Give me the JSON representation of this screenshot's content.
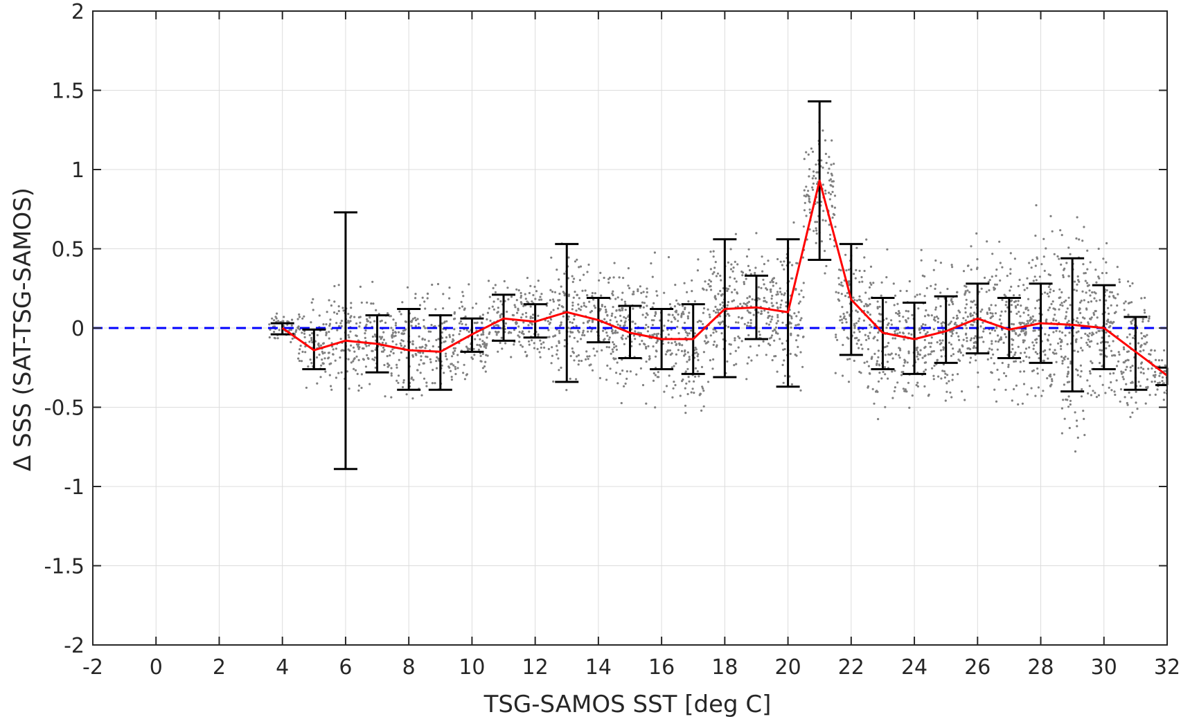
{
  "chart_data": {
    "type": "scatter",
    "xlabel": "TSG-SAMOS SST [deg C]",
    "ylabel": "Δ SSS (SAT-TSG-SAMOS)",
    "xlim": [
      -2,
      32
    ],
    "ylim": [
      -2,
      2
    ],
    "xticks": [
      -2,
      0,
      2,
      4,
      6,
      8,
      10,
      12,
      14,
      16,
      18,
      20,
      22,
      24,
      26,
      28,
      30,
      32
    ],
    "yticks": [
      -2,
      -1.5,
      -1,
      -0.5,
      0,
      0.5,
      1,
      1.5,
      2
    ],
    "xtick_labels": [
      "-2",
      "0",
      "2",
      "4",
      "6",
      "8",
      "10",
      "12",
      "14",
      "16",
      "18",
      "20",
      "22",
      "24",
      "26",
      "28",
      "30",
      "32"
    ],
    "ytick_labels": [
      "-2",
      "-1.5",
      "-1",
      "-0.5",
      "0",
      "0.5",
      "1",
      "1.5",
      "2"
    ],
    "grid": true,
    "colors": {
      "scatter": "#808080",
      "mean_line": "#ff0000",
      "error_bars": "#000000",
      "zero_line": "#0000ff",
      "grid": "#dcdcdc"
    },
    "zero_line": {
      "y": 0,
      "style": "dashed"
    },
    "scatter_clouds": [
      {
        "x": 4.0,
        "center": 0.0,
        "spread": 0.04
      },
      {
        "x": 5.0,
        "center": -0.1,
        "spread": 0.12
      },
      {
        "x": 6.0,
        "center": -0.05,
        "spread": 0.15
      },
      {
        "x": 7.0,
        "center": -0.08,
        "spread": 0.14
      },
      {
        "x": 8.0,
        "center": -0.1,
        "spread": 0.16
      },
      {
        "x": 9.0,
        "center": -0.12,
        "spread": 0.16
      },
      {
        "x": 10.0,
        "center": -0.05,
        "spread": 0.13
      },
      {
        "x": 11.0,
        "center": 0.05,
        "spread": 0.1
      },
      {
        "x": 12.0,
        "center": 0.05,
        "spread": 0.12
      },
      {
        "x": 13.0,
        "center": 0.08,
        "spread": 0.2
      },
      {
        "x": 14.0,
        "center": 0.05,
        "spread": 0.18
      },
      {
        "x": 15.0,
        "center": 0.0,
        "spread": 0.18
      },
      {
        "x": 16.0,
        "center": -0.05,
        "spread": 0.18
      },
      {
        "x": 17.0,
        "center": -0.05,
        "spread": 0.2
      },
      {
        "x": 18.0,
        "center": 0.1,
        "spread": 0.2
      },
      {
        "x": 19.0,
        "center": 0.12,
        "spread": 0.17
      },
      {
        "x": 20.0,
        "center": 0.1,
        "spread": 0.2
      },
      {
        "x": 21.0,
        "center": 0.85,
        "spread": 0.2
      },
      {
        "x": 22.0,
        "center": 0.1,
        "spread": 0.2
      },
      {
        "x": 23.0,
        "center": -0.05,
        "spread": 0.2
      },
      {
        "x": 24.0,
        "center": -0.08,
        "spread": 0.2
      },
      {
        "x": 25.0,
        "center": -0.02,
        "spread": 0.2
      },
      {
        "x": 26.0,
        "center": 0.05,
        "spread": 0.22
      },
      {
        "x": 27.0,
        "center": 0.0,
        "spread": 0.22
      },
      {
        "x": 28.0,
        "center": 0.03,
        "spread": 0.25
      },
      {
        "x": 29.0,
        "center": 0.02,
        "spread": 0.3
      },
      {
        "x": 30.0,
        "center": 0.0,
        "spread": 0.25
      },
      {
        "x": 31.0,
        "center": -0.15,
        "spread": 0.18
      },
      {
        "x": 32.0,
        "center": -0.3,
        "spread": 0.08
      }
    ],
    "series": [
      {
        "type": "line",
        "points": [
          {
            "x": 4,
            "y": 0.0
          },
          {
            "x": 5,
            "y": -0.14
          },
          {
            "x": 6,
            "y": -0.08
          },
          {
            "x": 7,
            "y": -0.1
          },
          {
            "x": 8,
            "y": -0.14
          },
          {
            "x": 9,
            "y": -0.15
          },
          {
            "x": 10,
            "y": -0.04
          },
          {
            "x": 11,
            "y": 0.06
          },
          {
            "x": 12,
            "y": 0.04
          },
          {
            "x": 13,
            "y": 0.1
          },
          {
            "x": 14,
            "y": 0.05
          },
          {
            "x": 15,
            "y": -0.03
          },
          {
            "x": 16,
            "y": -0.07
          },
          {
            "x": 17,
            "y": -0.07
          },
          {
            "x": 18,
            "y": 0.12
          },
          {
            "x": 19,
            "y": 0.13
          },
          {
            "x": 20,
            "y": 0.1
          },
          {
            "x": 21,
            "y": 0.93
          },
          {
            "x": 22,
            "y": 0.18
          },
          {
            "x": 23,
            "y": -0.03
          },
          {
            "x": 24,
            "y": -0.07
          },
          {
            "x": 25,
            "y": -0.02
          },
          {
            "x": 26,
            "y": 0.06
          },
          {
            "x": 27,
            "y": -0.01
          },
          {
            "x": 28,
            "y": 0.03
          },
          {
            "x": 29,
            "y": 0.02
          },
          {
            "x": 30,
            "y": 0.0
          },
          {
            "x": 31,
            "y": -0.15
          },
          {
            "x": 32,
            "y": -0.3
          }
        ]
      },
      {
        "type": "errorbar",
        "points": [
          {
            "x": 4,
            "low": -0.04,
            "high": 0.03
          },
          {
            "x": 5,
            "low": -0.26,
            "high": -0.01
          },
          {
            "x": 6,
            "low": -0.89,
            "high": 0.73
          },
          {
            "x": 7,
            "low": -0.28,
            "high": 0.08
          },
          {
            "x": 8,
            "low": -0.39,
            "high": 0.12
          },
          {
            "x": 9,
            "low": -0.39,
            "high": 0.08
          },
          {
            "x": 10,
            "low": -0.15,
            "high": 0.06
          },
          {
            "x": 11,
            "low": -0.08,
            "high": 0.21
          },
          {
            "x": 12,
            "low": -0.06,
            "high": 0.15
          },
          {
            "x": 13,
            "low": -0.34,
            "high": 0.53
          },
          {
            "x": 14,
            "low": -0.09,
            "high": 0.19
          },
          {
            "x": 15,
            "low": -0.19,
            "high": 0.14
          },
          {
            "x": 16,
            "low": -0.26,
            "high": 0.12
          },
          {
            "x": 17,
            "low": -0.29,
            "high": 0.15
          },
          {
            "x": 18,
            "low": -0.31,
            "high": 0.56
          },
          {
            "x": 19,
            "low": -0.07,
            "high": 0.33
          },
          {
            "x": 20,
            "low": -0.37,
            "high": 0.56
          },
          {
            "x": 21,
            "low": 0.43,
            "high": 1.43
          },
          {
            "x": 22,
            "low": -0.17,
            "high": 0.53
          },
          {
            "x": 23,
            "low": -0.26,
            "high": 0.19
          },
          {
            "x": 24,
            "low": -0.29,
            "high": 0.16
          },
          {
            "x": 25,
            "low": -0.22,
            "high": 0.2
          },
          {
            "x": 26,
            "low": -0.16,
            "high": 0.28
          },
          {
            "x": 27,
            "low": -0.19,
            "high": 0.19
          },
          {
            "x": 28,
            "low": -0.22,
            "high": 0.28
          },
          {
            "x": 29,
            "low": -0.4,
            "high": 0.44
          },
          {
            "x": 30,
            "low": -0.26,
            "high": 0.27
          },
          {
            "x": 31,
            "low": -0.39,
            "high": 0.07
          },
          {
            "x": 32,
            "low": -0.36,
            "high": -0.25
          }
        ]
      }
    ]
  }
}
